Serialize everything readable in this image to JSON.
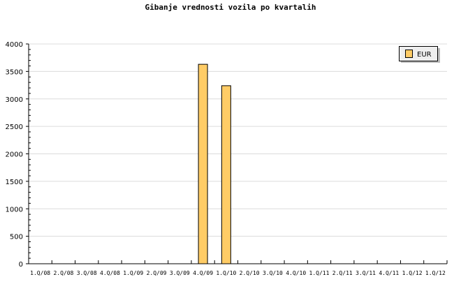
{
  "chart_data": {
    "type": "bar",
    "title": "Gibanje vrednosti vozila po kvartalih",
    "xlabel": "",
    "ylabel": "",
    "categories": [
      "1.Q/08",
      "2.Q/08",
      "3.Q/08",
      "4.Q/08",
      "1.Q/09",
      "2.Q/09",
      "3.Q/09",
      "4.Q/09",
      "1.Q/10",
      "2.Q/10",
      "3.Q/10",
      "4.Q/10",
      "1.Q/11",
      "2.Q/11",
      "3.Q/11",
      "4.Q/11",
      "1.Q/12",
      "1.Q/12"
    ],
    "series": [
      {
        "name": "EUR",
        "color": "#FFCC66",
        "values": [
          0,
          0,
          0,
          0,
          0,
          0,
          0,
          3630,
          3240,
          0,
          0,
          0,
          0,
          0,
          0,
          0,
          0,
          0
        ]
      }
    ],
    "ylim": [
      0,
      4000
    ],
    "yticks": [
      0,
      500,
      1000,
      1500,
      2000,
      2500,
      3000,
      3500,
      4000
    ],
    "grid": true,
    "legend": "top-right"
  }
}
